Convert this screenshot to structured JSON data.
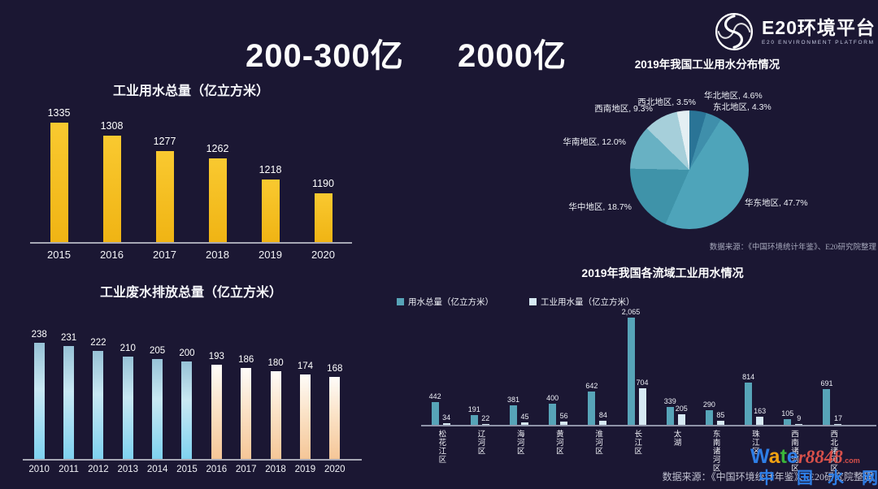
{
  "slide": {
    "headline_left": "200-300亿",
    "headline_right": "2000亿"
  },
  "logo": {
    "name": "E20环境平台",
    "subtitle": "E20 ENVIRONMENT PLATFORM"
  },
  "colors": {
    "background": "#1b1733",
    "gold_bar": "#f5bf1f",
    "cyan_bar": "#7fd2f0",
    "cream_bar": "#f5c697",
    "teal_bar": "#57a4b8",
    "pale_bar": "#d6e9f3",
    "watermark_blue": "#2e7ee6"
  },
  "chart_data": [
    {
      "id": "industrial-water-total",
      "type": "bar",
      "title": "工业用水总量（亿立方米）",
      "categories": [
        "2015",
        "2016",
        "2017",
        "2018",
        "2019",
        "2020"
      ],
      "values": [
        1335,
        1308,
        1277,
        1262,
        1218,
        1190
      ],
      "ylim": [
        1090,
        1340
      ],
      "grid": false,
      "bar_color": "#f5bf1f"
    },
    {
      "id": "industrial-wastewater-discharge",
      "type": "bar",
      "title": "工业废水排放总量（亿立方米）",
      "categories": [
        "2010",
        "2011",
        "2012",
        "2013",
        "2014",
        "2015",
        "2016",
        "2017",
        "2018",
        "2019",
        "2020"
      ],
      "values": [
        238,
        231,
        222,
        210,
        205,
        200,
        193,
        186,
        180,
        174,
        168
      ],
      "ylim": [
        0,
        280
      ],
      "grid": false,
      "bar_color_2010_2015": "#7fd2f0",
      "bar_color_2016_2020": "#f5c697"
    },
    {
      "id": "water-distribution-pie",
      "type": "pie",
      "title": "2019年我国工业用水分布情况",
      "slices": [
        {
          "label": "华北地区",
          "value": 4.6,
          "color": "#2a7496"
        },
        {
          "label": "东北地区",
          "value": 4.3,
          "color": "#3f8fab"
        },
        {
          "label": "华东地区",
          "value": 47.7,
          "color": "#4ea4ba"
        },
        {
          "label": "华中地区",
          "value": 18.7,
          "color": "#3f93a9"
        },
        {
          "label": "华南地区",
          "value": 12.0,
          "color": "#68b1c3"
        },
        {
          "label": "西南地区",
          "value": 9.3,
          "color": "#a6cfda"
        },
        {
          "label": "西北地区",
          "value": 3.5,
          "color": "#e4eff3"
        }
      ],
      "source": "数据来源：《中国环境统计年鉴》、E20研究院整理"
    },
    {
      "id": "basin-industrial-water-use",
      "type": "bar",
      "title": "2019年我国各流域工业用水情况",
      "categories": [
        "松花江区",
        "辽河区",
        "海河区",
        "黄河区",
        "淮河区",
        "长江区",
        "太湖",
        "东南诸河区",
        "珠江区",
        "西南诸河区",
        "西北诸河区"
      ],
      "series": [
        {
          "name": "用水总量（亿立方米）",
          "color": "#57a4b8",
          "values": [
            442,
            191,
            381,
            400,
            642,
            2065,
            339,
            290,
            814,
            105,
            691
          ]
        },
        {
          "name": "工业用水量（亿立方米）",
          "color": "#d6e9f3",
          "values": [
            34,
            22,
            45,
            56,
            84,
            704,
            205,
            85,
            163,
            9,
            17
          ]
        }
      ],
      "ylim": [
        0,
        2200
      ],
      "grid": false,
      "legend_position": "top-left",
      "source": "数据来源：《中国环境统计年鉴》、E20研究院整理"
    }
  ],
  "watermark": {
    "brand_letters": [
      {
        "ch": "W",
        "color": "#2e7ee6"
      },
      {
        "ch": "a",
        "color": "#f0a112"
      },
      {
        "ch": "t",
        "color": "#3ab53a"
      },
      {
        "ch": "e",
        "color": "#2e7ee6"
      }
    ],
    "brand_tail": "r8848",
    "brand_tail_color": "#d8504a",
    "dotcom": ".com",
    "site_name_chars": [
      "中",
      "国",
      "水",
      "网"
    ]
  }
}
